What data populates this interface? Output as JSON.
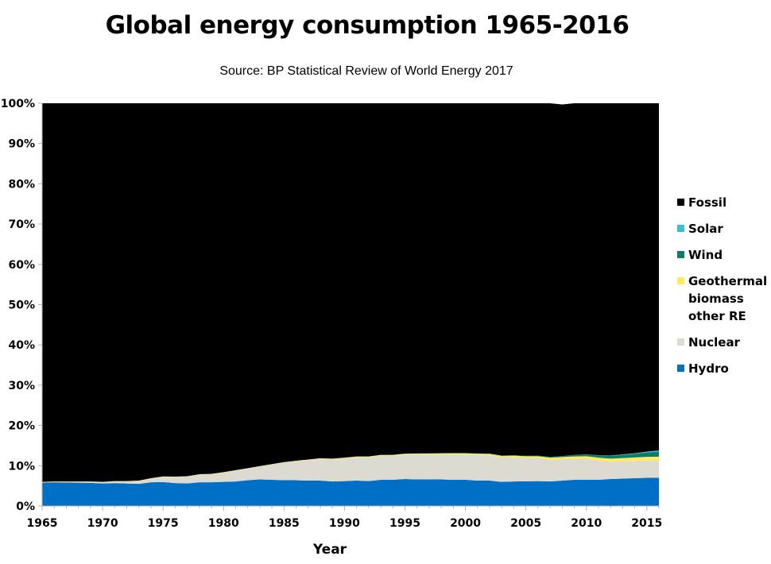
{
  "chart_data": {
    "type": "area",
    "stacked": true,
    "percent": true,
    "title": "Global energy consumption 1965-2016",
    "subtitle": "Source: BP Statistical Review of World Energy 2017",
    "xlabel": "Year",
    "ylabel": "",
    "xlim": [
      1965,
      2016
    ],
    "ylim": [
      0,
      100
    ],
    "x_ticks": [
      "1965",
      "1970",
      "1975",
      "1980",
      "1985",
      "1990",
      "1995",
      "2000",
      "2005",
      "2010",
      "2015"
    ],
    "y_ticks": [
      "0%",
      "10%",
      "20%",
      "30%",
      "40%",
      "50%",
      "60%",
      "70%",
      "80%",
      "90%",
      "100%"
    ],
    "legend_position": "right",
    "grid": false,
    "x": [
      1965,
      1966,
      1967,
      1968,
      1969,
      1970,
      1971,
      1972,
      1973,
      1974,
      1975,
      1976,
      1977,
      1978,
      1979,
      1980,
      1981,
      1982,
      1983,
      1984,
      1985,
      1986,
      1987,
      1988,
      1989,
      1990,
      1991,
      1992,
      1993,
      1994,
      1995,
      1996,
      1997,
      1998,
      1999,
      2000,
      2001,
      2002,
      2003,
      2004,
      2005,
      2006,
      2007,
      2008,
      2009,
      2010,
      2011,
      2012,
      2013,
      2014,
      2015,
      2016
    ],
    "series": [
      {
        "name": "Hydro",
        "color": "#0070C6",
        "values": [
          5.8,
          5.9,
          5.85,
          5.8,
          5.75,
          5.6,
          5.7,
          5.6,
          5.5,
          5.9,
          5.95,
          5.7,
          5.6,
          5.9,
          5.9,
          6.0,
          6.1,
          6.4,
          6.6,
          6.5,
          6.4,
          6.4,
          6.3,
          6.3,
          6.1,
          6.2,
          6.3,
          6.2,
          6.5,
          6.5,
          6.7,
          6.6,
          6.6,
          6.6,
          6.5,
          6.5,
          6.3,
          6.3,
          6.0,
          6.1,
          6.15,
          6.2,
          6.1,
          6.3,
          6.5,
          6.5,
          6.5,
          6.7,
          6.8,
          6.9,
          7.0,
          7.0
        ]
      },
      {
        "name": "Nuclear",
        "color": "#DDDAD2",
        "values": [
          0.1,
          0.1,
          0.15,
          0.2,
          0.25,
          0.3,
          0.4,
          0.5,
          0.7,
          0.9,
          1.3,
          1.5,
          1.7,
          1.9,
          2.0,
          2.3,
          2.7,
          2.9,
          3.2,
          3.8,
          4.4,
          4.7,
          5.1,
          5.4,
          5.5,
          5.6,
          5.8,
          5.9,
          6.0,
          6.0,
          6.1,
          6.2,
          6.2,
          6.2,
          6.3,
          6.3,
          6.4,
          6.3,
          6.1,
          6.0,
          5.8,
          5.7,
          5.4,
          5.3,
          5.2,
          5.2,
          4.8,
          4.3,
          4.3,
          4.3,
          4.3,
          4.3
        ]
      },
      {
        "name": "Geothermal biomass other RE",
        "color": "#FFEB5B",
        "values": [
          0.1,
          0.1,
          0.1,
          0.1,
          0.1,
          0.1,
          0.1,
          0.1,
          0.1,
          0.1,
          0.1,
          0.1,
          0.1,
          0.1,
          0.1,
          0.1,
          0.1,
          0.1,
          0.1,
          0.1,
          0.1,
          0.15,
          0.15,
          0.15,
          0.15,
          0.2,
          0.2,
          0.2,
          0.2,
          0.2,
          0.2,
          0.25,
          0.25,
          0.3,
          0.3,
          0.3,
          0.3,
          0.35,
          0.35,
          0.4,
          0.4,
          0.45,
          0.5,
          0.55,
          0.6,
          0.65,
          0.7,
          0.75,
          0.8,
          0.85,
          0.9,
          0.95
        ]
      },
      {
        "name": "Wind",
        "color": "#0D7B65",
        "values": [
          0,
          0,
          0,
          0,
          0,
          0,
          0,
          0,
          0,
          0,
          0,
          0,
          0,
          0,
          0,
          0,
          0,
          0,
          0,
          0,
          0,
          0,
          0,
          0,
          0,
          0,
          0,
          0,
          0,
          0,
          0,
          0,
          0.01,
          0.02,
          0.03,
          0.04,
          0.05,
          0.06,
          0.08,
          0.1,
          0.12,
          0.15,
          0.2,
          0.25,
          0.35,
          0.45,
          0.55,
          0.7,
          0.8,
          0.9,
          1.1,
          1.25
        ]
      },
      {
        "name": "Solar",
        "color": "#33C3D6",
        "values": [
          0,
          0,
          0,
          0,
          0,
          0,
          0,
          0,
          0,
          0,
          0,
          0,
          0,
          0,
          0,
          0,
          0,
          0,
          0,
          0,
          0,
          0,
          0,
          0,
          0,
          0,
          0,
          0,
          0,
          0,
          0,
          0,
          0,
          0,
          0,
          0,
          0,
          0,
          0,
          0,
          0,
          0,
          0,
          0.01,
          0.02,
          0.03,
          0.05,
          0.08,
          0.12,
          0.15,
          0.2,
          0.28
        ]
      },
      {
        "name": "Fossil",
        "color": "#000000",
        "values": [
          94.0,
          93.9,
          93.9,
          93.9,
          93.9,
          94.0,
          93.8,
          93.8,
          93.7,
          93.1,
          92.65,
          92.7,
          92.6,
          92.1,
          92.0,
          91.6,
          91.1,
          90.6,
          90.1,
          89.6,
          89.1,
          88.75,
          88.45,
          88.15,
          88.25,
          88.0,
          87.7,
          87.7,
          87.3,
          87.3,
          87.0,
          86.95,
          86.94,
          86.88,
          86.87,
          86.86,
          86.95,
          86.99,
          87.47,
          87.4,
          87.53,
          87.5,
          87.8,
          87.29,
          87.33,
          87.17,
          87.4,
          87.47,
          87.18,
          86.9,
          86.5,
          86.22
        ]
      }
    ]
  },
  "legend": {
    "items": [
      {
        "label": "Fossil",
        "color": "#000000"
      },
      {
        "label": "Solar",
        "color": "#33C3D6"
      },
      {
        "label": "Wind",
        "color": "#0D7B65"
      },
      {
        "label": "Geothermal\nbiomass\nother RE",
        "color": "#FFEB5B"
      },
      {
        "label": "Nuclear",
        "color": "#DDDAD2"
      },
      {
        "label": "Hydro",
        "color": "#0070C6"
      }
    ]
  }
}
